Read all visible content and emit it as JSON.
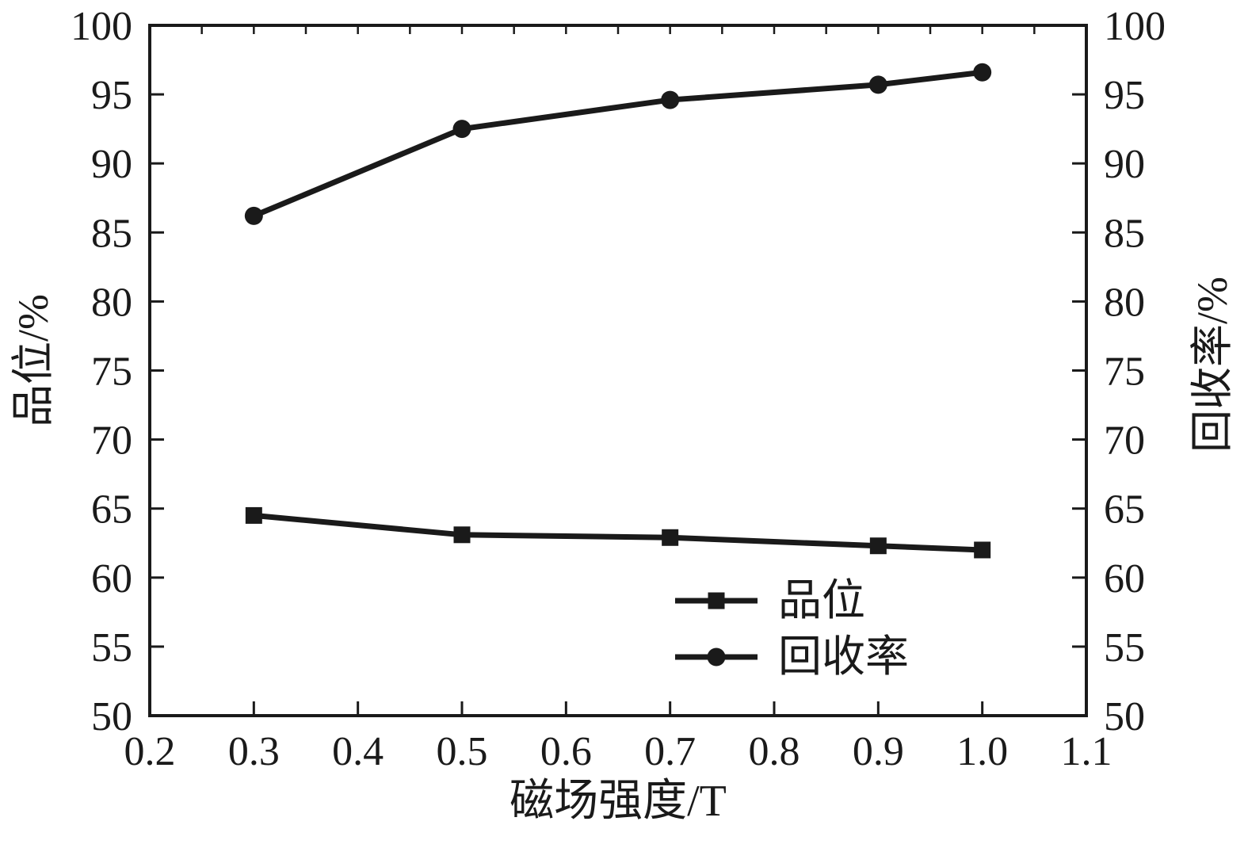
{
  "chart_data": {
    "type": "line",
    "title": "",
    "xlabel": "磁场强度/T",
    "ylabel_left": "品位/%",
    "ylabel_right": "回收率/%",
    "x": [
      0.3,
      0.5,
      0.7,
      0.9,
      1.0
    ],
    "series": [
      {
        "name": "品位",
        "axis": "left",
        "marker": "square",
        "values": [
          64.5,
          63.1,
          62.9,
          62.3,
          62.0
        ]
      },
      {
        "name": "回收率",
        "axis": "right",
        "marker": "circle",
        "values": [
          86.2,
          92.5,
          94.6,
          95.7,
          96.6
        ]
      }
    ],
    "xlim": [
      0.2,
      1.1
    ],
    "ylim_left": [
      50,
      100
    ],
    "ylim_right": [
      50,
      100
    ],
    "x_ticks": [
      0.2,
      0.3,
      0.4,
      0.5,
      0.6,
      0.7,
      0.8,
      0.9,
      1.0,
      1.1
    ],
    "x_tick_labels": [
      "0.2",
      "0.3",
      "0.4",
      "0.5",
      "0.6",
      "0.7",
      "0.8",
      "0.9",
      "1.0",
      "1.1"
    ],
    "y_ticks": [
      50,
      55,
      60,
      65,
      70,
      75,
      80,
      85,
      90,
      95,
      100
    ],
    "y_tick_labels": [
      "50",
      "55",
      "60",
      "65",
      "70",
      "75",
      "80",
      "85",
      "90",
      "95",
      "100"
    ],
    "top_minor_ticks": {
      "start": 0.25,
      "step": 0.05,
      "end": 1.05
    },
    "grid": false,
    "legend_position": "inside lower right",
    "line_color": "#1a1a1a",
    "background": "#ffffff"
  }
}
